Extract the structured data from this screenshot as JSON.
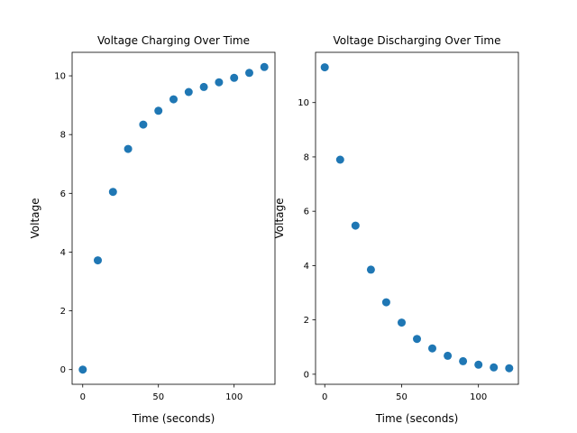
{
  "chart_data": [
    {
      "type": "scatter",
      "title": "Voltage Charging Over Time",
      "xlabel": "Time (seconds)",
      "ylabel": "Voltage",
      "color": "#1f77b4",
      "xlim": [
        -7,
        127
      ],
      "ylim": [
        -0.5,
        10.8
      ],
      "xticks": [
        0,
        50,
        100
      ],
      "yticks": [
        0,
        2,
        4,
        6,
        8,
        10
      ],
      "x": [
        0,
        10,
        20,
        30,
        40,
        50,
        60,
        70,
        80,
        90,
        100,
        110,
        120
      ],
      "y": [
        0.0,
        3.72,
        6.05,
        7.51,
        8.34,
        8.81,
        9.2,
        9.45,
        9.62,
        9.78,
        9.93,
        10.1,
        10.3
      ]
    },
    {
      "type": "scatter",
      "title": "Voltage Discharging Over Time",
      "xlabel": "Time (seconds)",
      "ylabel": "Voltage",
      "color": "#1f77b4",
      "xlim": [
        -6,
        126
      ],
      "ylim": [
        -0.37,
        11.85
      ],
      "xticks": [
        0,
        50,
        100
      ],
      "yticks": [
        0,
        2,
        4,
        6,
        8,
        10
      ],
      "x": [
        0,
        10,
        20,
        30,
        40,
        50,
        60,
        70,
        80,
        90,
        100,
        110,
        120
      ],
      "y": [
        11.3,
        7.9,
        5.47,
        3.85,
        2.65,
        1.9,
        1.3,
        0.95,
        0.68,
        0.48,
        0.35,
        0.25,
        0.22
      ]
    }
  ]
}
